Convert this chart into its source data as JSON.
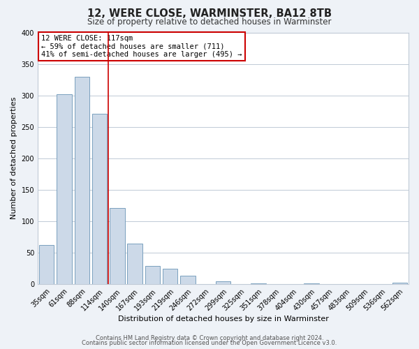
{
  "title": "12, WERE CLOSE, WARMINSTER, BA12 8TB",
  "subtitle": "Size of property relative to detached houses in Warminster",
  "xlabel": "Distribution of detached houses by size in Warminster",
  "ylabel": "Number of detached properties",
  "bar_color": "#ccd9e8",
  "bar_edge_color": "#7aa0be",
  "categories": [
    "35sqm",
    "61sqm",
    "88sqm",
    "114sqm",
    "140sqm",
    "167sqm",
    "193sqm",
    "219sqm",
    "246sqm",
    "272sqm",
    "299sqm",
    "325sqm",
    "351sqm",
    "378sqm",
    "404sqm",
    "430sqm",
    "457sqm",
    "483sqm",
    "509sqm",
    "536sqm",
    "562sqm"
  ],
  "values": [
    62,
    302,
    330,
    271,
    121,
    64,
    29,
    25,
    13,
    0,
    5,
    0,
    1,
    0,
    0,
    1,
    0,
    0,
    0,
    0,
    2
  ],
  "ylim": [
    0,
    400
  ],
  "yticks": [
    0,
    50,
    100,
    150,
    200,
    250,
    300,
    350,
    400
  ],
  "red_line_x": 3.5,
  "annotation_title": "12 WERE CLOSE: 117sqm",
  "annotation_line1": "← 59% of detached houses are smaller (711)",
  "annotation_line2": "41% of semi-detached houses are larger (495) →",
  "footer_line1": "Contains HM Land Registry data © Crown copyright and database right 2024.",
  "footer_line2": "Contains public sector information licensed under the Open Government Licence v3.0.",
  "bg_color": "#eef2f7",
  "plot_bg_color": "#ffffff",
  "grid_color": "#c0cad6",
  "red_line_color": "#cc0000",
  "annotation_box_edge": "#cc0000",
  "title_fontsize": 10.5,
  "subtitle_fontsize": 8.5,
  "ylabel_fontsize": 8,
  "xlabel_fontsize": 8,
  "tick_fontsize": 7,
  "annotation_fontsize": 7.5,
  "footer_fontsize": 6
}
